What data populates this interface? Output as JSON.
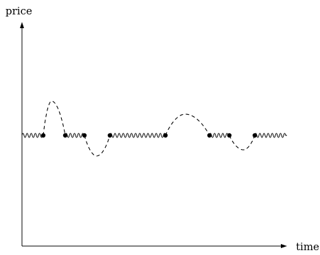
{
  "axes": {
    "y_label": "price",
    "x_label": "time"
  },
  "segments": [
    {
      "kind": "wavy"
    },
    {
      "kind": "dashed-bump",
      "direction": "up"
    },
    {
      "kind": "wavy"
    },
    {
      "kind": "dashed-bump",
      "direction": "down"
    },
    {
      "kind": "wavy"
    },
    {
      "kind": "dashed-bump",
      "direction": "up"
    },
    {
      "kind": "wavy"
    },
    {
      "kind": "dashed-bump",
      "direction": "down"
    },
    {
      "kind": "wavy"
    }
  ],
  "colors": {
    "ink": "#000000",
    "background": "#ffffff"
  }
}
